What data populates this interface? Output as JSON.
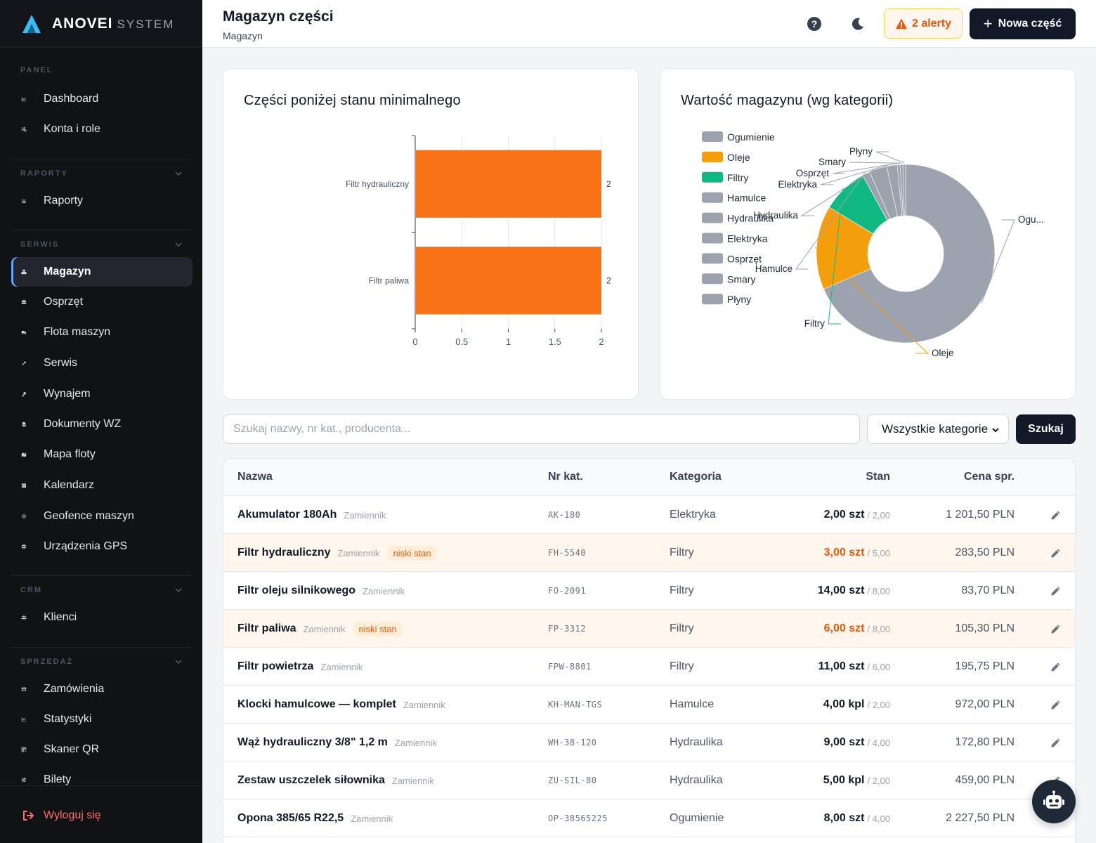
{
  "brand": {
    "name": "ANOVEI",
    "sub": "SYSTEM"
  },
  "sidebar": {
    "sections": [
      {
        "title": "PANEL",
        "collapsible": false,
        "items": [
          {
            "label": "Dashboard",
            "icon": "chart-line-icon"
          },
          {
            "label": "Konta i role",
            "icon": "users-cog-icon"
          }
        ]
      },
      {
        "title": "RAPORTY",
        "collapsible": true,
        "items": [
          {
            "label": "Raporty",
            "icon": "list-icon"
          }
        ]
      },
      {
        "title": "SERWIS",
        "collapsible": true,
        "items": [
          {
            "label": "Magazyn",
            "icon": "boxes-icon",
            "active": true
          },
          {
            "label": "Osprzęt",
            "icon": "toolbox-icon"
          },
          {
            "label": "Flota maszyn",
            "icon": "truck-icon"
          },
          {
            "label": "Serwis",
            "icon": "wrench-icon"
          },
          {
            "label": "Wynajem",
            "icon": "key-icon"
          },
          {
            "label": "Dokumenty WZ",
            "icon": "file-icon"
          },
          {
            "label": "Mapa floty",
            "icon": "map-icon"
          },
          {
            "label": "Kalendarz",
            "icon": "calendar-icon"
          },
          {
            "label": "Geofence maszyn",
            "icon": "crosshair-icon"
          },
          {
            "label": "Urządzenia GPS",
            "icon": "chip-icon"
          }
        ]
      },
      {
        "title": "CRM",
        "collapsible": true,
        "items": [
          {
            "label": "Klienci",
            "icon": "users-icon"
          }
        ]
      },
      {
        "title": "SPRZEDAŻ",
        "collapsible": true,
        "items": [
          {
            "label": "Zamówienia",
            "icon": "orders-icon"
          },
          {
            "label": "Statystyki",
            "icon": "chart-line-icon"
          },
          {
            "label": "Skaner QR",
            "icon": "qr-icon"
          },
          {
            "label": "Bilety",
            "icon": "sliders-icon"
          }
        ]
      }
    ],
    "logout": "Wyloguj się"
  },
  "header": {
    "title": "Magazyn części",
    "breadcrumb": "Magazyn",
    "alerts_label": "2 alerty",
    "new_button": "Nowa część"
  },
  "low_stock_card": {
    "title": "Części poniżej stanu minimalnego"
  },
  "value_card": {
    "title": "Wartość magazynu (wg kategorii)"
  },
  "chart_data": [
    {
      "type": "bar",
      "orientation": "horizontal",
      "categories": [
        "Filtr hydrauliczny",
        "Filtr paliwa"
      ],
      "values": [
        2,
        2
      ],
      "data_labels": [
        "2",
        "2"
      ],
      "xlim": [
        0,
        2
      ],
      "x_ticks": [
        "0",
        "0.5",
        "1",
        "1.5",
        "2"
      ],
      "grid": true,
      "color": "#f97316"
    },
    {
      "type": "pie",
      "donut": true,
      "legend_position": "left",
      "categories": [
        "Ogumienie",
        "Oleje",
        "Filtry",
        "Hamulce",
        "Hydraulika",
        "Elektryka",
        "Osprzęt",
        "Smary",
        "Płyny"
      ],
      "legend_labels": [
        "Ogumienie",
        "Oleje",
        "Filtry",
        "Hamulce",
        "Hydraulika",
        "Elektryka",
        "Osprzęt",
        "Smary",
        "Płyny"
      ],
      "slice_labels": [
        "Ogu...",
        "Oleje",
        "Filtry",
        "Hamulce",
        "Hydraulika",
        "Elektryka",
        "Osprzęt",
        "Smary",
        "Płyny"
      ],
      "values": [
        68.5,
        15.2,
        8.3,
        1.4,
        3.2,
        1.9,
        0.5,
        0.5,
        0.5
      ],
      "colors": [
        "#9ca3af",
        "#f59e0b",
        "#10b981",
        "#9ca3af",
        "#9ca3af",
        "#9ca3af",
        "#9ca3af",
        "#9ca3af",
        "#9ca3af"
      ]
    }
  ],
  "search": {
    "placeholder": "Szukaj nazwy, nr kat., producenta...",
    "category_selected": "Wszystkie kategorie",
    "button": "Szukaj"
  },
  "table": {
    "columns": [
      "Nazwa",
      "Nr kat.",
      "Kategoria",
      "Stan",
      "Cena spr."
    ],
    "rows": [
      {
        "name": "Akumulator 180Ah",
        "tag": "Zamiennik",
        "badge": "",
        "low": false,
        "cat_no": "AK-180",
        "category": "Elektryka",
        "stock": "2,00 szt",
        "min": "/ 2,00",
        "price": "1 201,50 PLN"
      },
      {
        "name": "Filtr hydrauliczny",
        "tag": "Zamiennik",
        "badge": "niski stan",
        "low": true,
        "cat_no": "FH-5540",
        "category": "Filtry",
        "stock": "3,00 szt",
        "min": "/ 5,00",
        "price": "283,50 PLN"
      },
      {
        "name": "Filtr oleju silnikowego",
        "tag": "Zamiennik",
        "badge": "",
        "low": false,
        "cat_no": "FO-2091",
        "category": "Filtry",
        "stock": "14,00 szt",
        "min": "/ 8,00",
        "price": "83,70 PLN"
      },
      {
        "name": "Filtr paliwa",
        "tag": "Zamiennik",
        "badge": "niski stan",
        "low": true,
        "cat_no": "FP-3312",
        "category": "Filtry",
        "stock": "6,00 szt",
        "min": "/ 8,00",
        "price": "105,30 PLN"
      },
      {
        "name": "Filtr powietrza",
        "tag": "Zamiennik",
        "badge": "",
        "low": false,
        "cat_no": "FPW-8801",
        "category": "Filtry",
        "stock": "11,00 szt",
        "min": "/ 6,00",
        "price": "195,75 PLN"
      },
      {
        "name": "Klocki hamulcowe — komplet",
        "tag": "Zamiennik",
        "badge": "",
        "low": false,
        "cat_no": "KH-MAN-TGS",
        "category": "Hamulce",
        "stock": "4,00 kpl",
        "min": "/ 2,00",
        "price": "972,00 PLN"
      },
      {
        "name": "Wąż hydrauliczny 3/8\" 1,2 m",
        "tag": "Zamiennik",
        "badge": "",
        "low": false,
        "cat_no": "WH-38-120",
        "category": "Hydraulika",
        "stock": "9,00 szt",
        "min": "/ 4,00",
        "price": "172,80 PLN"
      },
      {
        "name": "Zestaw uszczelek siłownika",
        "tag": "Zamiennik",
        "badge": "",
        "low": false,
        "cat_no": "ZU-SIL-80",
        "category": "Hydraulika",
        "stock": "5,00 kpl",
        "min": "/ 2,00",
        "price": "459,00 PLN"
      },
      {
        "name": "Opona 385/65 R22,5",
        "tag": "Zamiennik",
        "badge": "",
        "low": false,
        "cat_no": "OP-38565225",
        "category": "Ogumienie",
        "stock": "8,00 szt",
        "min": "/ 4,00",
        "price": "2 227,50 PLN"
      }
    ]
  }
}
